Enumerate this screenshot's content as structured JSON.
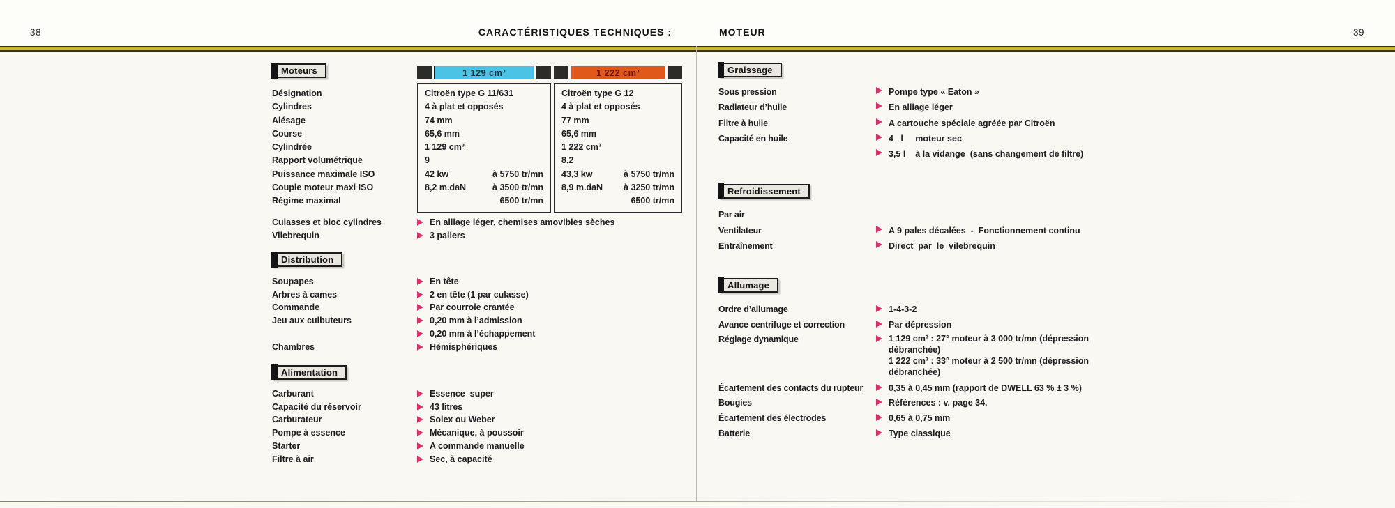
{
  "colors": {
    "bullet": "#d5336c",
    "gold": "#c9b72c",
    "gold_edge": "#3a3516",
    "engine1_bar": "#4ac3e4",
    "engine1_text": "#14303e",
    "engine2_bar": "#e0591b",
    "engine2_text": "#6f1400",
    "header_block": "#2e2c29"
  },
  "header": {
    "title_left": "CARACTÉRISTIQUES TECHNIQUES :",
    "title_right": "MOTEUR"
  },
  "page_left": {
    "page_number": "38",
    "moteurs": {
      "title": "Moteurs",
      "labels": [
        "Désignation",
        "Cylindres",
        "Alésage",
        "Course",
        "Cylindrée",
        "Rapport volumétrique",
        "Puissance maximale ISO",
        "Couple moteur maxi ISO",
        "Régime maximal"
      ],
      "columns": [
        {
          "header": "1 129 cm³",
          "bar_color": "#4ac3e4",
          "text_color": "#14303e",
          "rows": [
            {
              "l": "Citroën type G 11/631"
            },
            {
              "l": "4 à plat et opposés"
            },
            {
              "l": "74 mm"
            },
            {
              "l": "65,6 mm"
            },
            {
              "l": "1 129 cm³"
            },
            {
              "l": "9"
            },
            {
              "l": "42 kw",
              "r": "à 5750 tr/mn"
            },
            {
              "l": "8,2 m.daN",
              "r": "à 3500 tr/mn"
            },
            {
              "r": "6500 tr/mn"
            }
          ]
        },
        {
          "header": "1 222 cm³",
          "bar_color": "#e0591b",
          "text_color": "#6f1400",
          "rows": [
            {
              "l": "Citroën type G 12"
            },
            {
              "l": "4 à plat et opposés"
            },
            {
              "l": "77 mm"
            },
            {
              "l": "65,6 mm"
            },
            {
              "l": "1 222 cm³"
            },
            {
              "l": "8,2"
            },
            {
              "l": "43,3 kw",
              "r": "à 5750 tr/mn"
            },
            {
              "l": "8,9 m.daN",
              "r": "à 3250 tr/mn"
            },
            {
              "r": "6500 tr/mn"
            }
          ]
        }
      ],
      "rows": [
        {
          "label": "Culasses et bloc cylindres",
          "values": [
            "En alliage léger, chemises amovibles sèches"
          ]
        },
        {
          "label": "Vilebrequin",
          "values": [
            "3 paliers"
          ]
        }
      ]
    },
    "distribution": {
      "title": "Distribution",
      "rows": [
        {
          "label": "Soupapes",
          "values": [
            "En tête"
          ]
        },
        {
          "label": "Arbres à cames",
          "values": [
            "2 en tête (1 par culasse)"
          ]
        },
        {
          "label": "Commande",
          "values": [
            "Par courroie crantée"
          ]
        },
        {
          "label": "Jeu aux culbuteurs",
          "values": [
            "0,20 mm à l’admission",
            "0,20 mm à l’échappement"
          ]
        },
        {
          "label": "Chambres",
          "values": [
            "Hémisphériques"
          ]
        }
      ]
    },
    "alimentation": {
      "title": "Alimentation",
      "rows": [
        {
          "label": "Carburant",
          "values": [
            "Essence  super"
          ]
        },
        {
          "label": "Capacité du réservoir",
          "values": [
            "43 litres"
          ]
        },
        {
          "label": "Carburateur",
          "values": [
            "Solex ou Weber"
          ]
        },
        {
          "label": "Pompe à essence",
          "values": [
            "Mécanique, à poussoir"
          ]
        },
        {
          "label": "Starter",
          "values": [
            "A commande manuelle"
          ]
        },
        {
          "label": "Filtre à air",
          "values": [
            "Sec, à capacité"
          ]
        }
      ]
    }
  },
  "page_right": {
    "page_number": "39",
    "graissage": {
      "title": "Graissage",
      "rows": [
        {
          "label": "Sous pression",
          "values": [
            "Pompe type « Eaton »"
          ]
        },
        {
          "label": "Radiateur d’huile",
          "values": [
            "En alliage léger"
          ]
        },
        {
          "label": "Filtre à huile",
          "values": [
            "A cartouche spéciale agréée par Citroën"
          ]
        },
        {
          "label": "Capacité en huile",
          "values": [
            "4   l     moteur sec",
            "3,5 l    à la vidange  (sans changement de filtre)"
          ]
        }
      ]
    },
    "refroidissement": {
      "title": "Refroidissement",
      "rows": [
        {
          "label": "Par air",
          "values": []
        },
        {
          "label": "Ventilateur",
          "values": [
            "A 9 pales décalées  -  Fonctionnement continu"
          ]
        },
        {
          "label": "Entraînement",
          "values": [
            "Direct  par  le  vilebrequin"
          ]
        }
      ]
    },
    "allumage": {
      "title": "Allumage",
      "rows": [
        {
          "label": "Ordre d’allumage",
          "values": [
            "1-4-3-2"
          ]
        },
        {
          "label": "Avance centrifuge et correction",
          "values": [
            "Par dépression"
          ]
        },
        {
          "label": "Réglage dynamique",
          "tight": true,
          "values": [
            "1 129 cm³ : 27° moteur à 3 000 tr/mn (dépression\ndébranchée)\n1 222 cm³ : 33° moteur à 2 500 tr/mn (dépression\ndébranchée)"
          ]
        },
        {
          "label": "Écartement des contacts du rupteur",
          "values": [
            "0,35 à 0,45 mm (rapport de DWELL 63 % ± 3 %)"
          ]
        },
        {
          "label": "Bougies",
          "values": [
            "Références : v. page 34."
          ]
        },
        {
          "label": "Écartement des électrodes",
          "values": [
            "0,65 à 0,75 mm"
          ]
        },
        {
          "label": "Batterie",
          "values": [
            "Type classique"
          ]
        }
      ]
    }
  }
}
